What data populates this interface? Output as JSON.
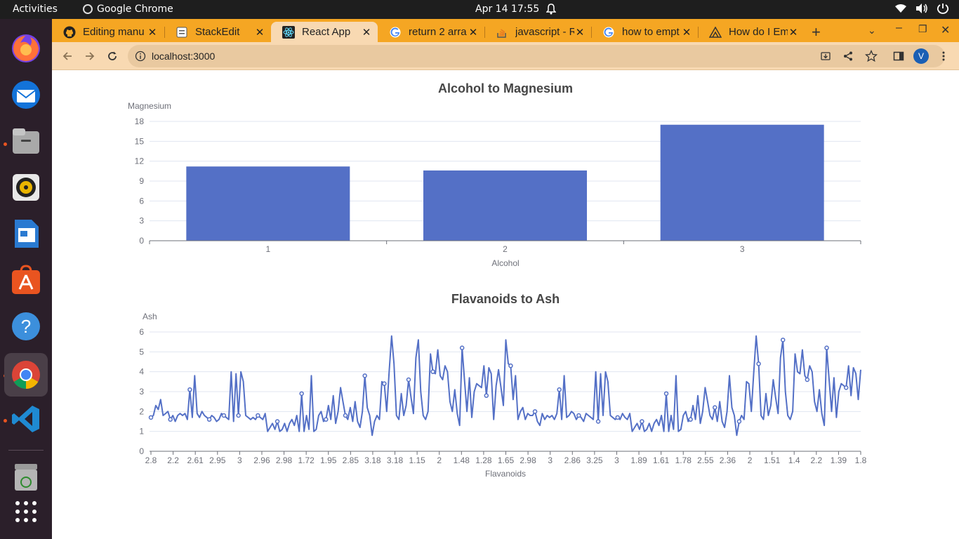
{
  "topbar": {
    "activities": "Activities",
    "app_name": "Google Chrome",
    "clock": "Apr 14  17:55"
  },
  "dock": {
    "items": [
      {
        "name": "firefox-icon",
        "color": "#e66000",
        "running": false
      },
      {
        "name": "thunderbird-icon",
        "color": "#2f6fca",
        "running": false
      },
      {
        "name": "files-icon",
        "color": "#8a8a8a",
        "running": true
      },
      {
        "name": "rhythmbox-icon",
        "color": "#e8b400",
        "running": false
      },
      {
        "name": "writer-icon",
        "color": "#2a7ad1",
        "running": false
      },
      {
        "name": "app-center-icon",
        "color": "#e95420",
        "running": false
      },
      {
        "name": "help-icon",
        "color": "#3c8fdc",
        "running": false
      },
      {
        "name": "chrome-icon",
        "color": "#4285f4",
        "running": true,
        "active": true
      },
      {
        "name": "vscode-icon",
        "color": "#1f8ad2",
        "running": true
      },
      {
        "name": "trash-icon",
        "color": "#8a8a8a",
        "running": false
      },
      {
        "name": "show-apps-icon",
        "color": "#ffffff",
        "running": false
      }
    ]
  },
  "browser": {
    "tabs": [
      {
        "label": "Editing manu",
        "icon": "github-icon",
        "active": false
      },
      {
        "label": "StackEdit",
        "icon": "stackedit-icon",
        "active": false
      },
      {
        "label": "React App",
        "icon": "react-icon",
        "active": true
      },
      {
        "label": "return 2 arra",
        "icon": "google-icon",
        "active": false
      },
      {
        "label": "javascript - R",
        "icon": "stackoverflow-icon",
        "active": false
      },
      {
        "label": "how to empt",
        "icon": "google-icon",
        "active": false
      },
      {
        "label": "How do I Em",
        "icon": "vercel-icon",
        "active": false
      }
    ],
    "url": "localhost:3000",
    "profile_initial": "V"
  },
  "chart_data": [
    {
      "type": "bar",
      "title": "Alcohol to Magnesium",
      "xlabel": "Alcohol",
      "ylabel": "Magnesium",
      "categories": [
        "1",
        "2",
        "3"
      ],
      "values": [
        11.2,
        10.6,
        17.5
      ],
      "ylim": [
        0,
        18
      ],
      "yticks": [
        0,
        3,
        6,
        9,
        12,
        15,
        18
      ],
      "grid": true,
      "color": "#5470c6"
    },
    {
      "type": "line",
      "title": "Flavanoids to Ash",
      "xlabel": "Flavanoids",
      "ylabel": "Ash",
      "ylim": [
        0,
        6
      ],
      "yticks": [
        0,
        1,
        2,
        3,
        4,
        5,
        6
      ],
      "grid": true,
      "color": "#5470c6",
      "xtick_labels": [
        "2.8",
        "2.2",
        "2.61",
        "2.95",
        "3",
        "2.96",
        "2.98",
        "1.72",
        "1.95",
        "2.85",
        "3.18",
        "3.18",
        "1.15",
        "2",
        "1.48",
        "1.28",
        "1.65",
        "2.98",
        "3",
        "2.86",
        "3.25",
        "3",
        "1.89",
        "1.61",
        "1.78",
        "2.55",
        "2.36",
        "2",
        "1.51",
        "1.4",
        "2.2",
        "1.39",
        "1.8"
      ],
      "values": [
        1.7,
        1.8,
        2.3,
        2.1,
        2.6,
        1.8,
        1.9,
        2.0,
        1.6,
        1.8,
        1.5,
        1.8,
        1.9,
        1.8,
        1.9,
        1.6,
        3.1,
        1.7,
        3.8,
        1.9,
        1.7,
        2.0,
        1.8,
        1.7,
        1.6,
        1.8,
        1.7,
        1.5,
        1.6,
        1.9,
        1.8,
        1.7,
        1.6,
        4.0,
        1.5,
        3.9,
        1.8,
        4.0,
        3.5,
        1.8,
        1.7,
        1.6,
        1.7,
        1.6,
        1.8,
        1.7,
        1.6,
        1.9,
        1.0,
        1.2,
        1.4,
        1.1,
        1.5,
        1.0,
        1.1,
        1.4,
        1.0,
        1.4,
        1.6,
        1.3,
        1.8,
        1.0,
        2.9,
        1.0,
        1.8,
        1.1,
        3.8,
        1.0,
        1.1,
        1.8,
        2.0,
        1.5,
        1.6,
        2.3,
        1.6,
        2.8,
        1.4,
        2.0,
        3.2,
        2.5,
        1.8,
        1.6,
        2.2,
        1.5,
        2.5,
        1.5,
        1.2,
        2.0,
        3.8,
        2.2,
        1.8,
        0.8,
        1.5,
        1.8,
        1.6,
        3.5,
        3.4,
        2.0,
        4.0,
        5.8,
        4.4,
        1.8,
        1.6,
        2.9,
        1.8,
        2.3,
        3.6,
        2.7,
        1.9,
        4.7,
        5.6,
        3.0,
        1.8,
        1.6,
        2.0,
        4.9,
        4.0,
        3.9,
        5.1,
        3.8,
        3.6,
        4.3,
        4.0,
        2.5,
        2.0,
        3.1,
        1.9,
        1.3,
        5.2,
        3.6,
        2.0,
        3.7,
        1.7,
        3.0,
        3.4,
        3.3,
        3.2,
        4.3,
        2.8,
        4.2,
        3.9,
        1.6,
        3.3,
        4.1,
        3.2,
        2.3,
        5.6,
        4.4,
        4.3,
        2.6,
        3.8,
        1.6,
        2.0,
        2.2,
        1.6,
        1.9,
        1.8,
        1.8,
        2.0,
        1.5,
        1.3,
        1.9,
        1.6,
        1.8,
        1.7,
        1.8,
        1.6,
        1.9,
        3.1,
        1.6,
        3.8,
        1.7,
        1.8,
        2.0,
        1.9,
        1.6,
        1.8,
        1.7,
        1.5,
        1.9,
        1.8,
        1.7,
        1.6,
        4.0,
        1.5,
        3.9,
        1.8,
        4.0,
        3.5,
        1.8,
        1.7,
        1.6,
        1.7,
        1.6,
        1.9,
        1.7,
        1.6,
        1.9,
        1.0,
        1.2,
        1.4,
        1.1,
        1.5,
        1.0,
        1.1,
        1.4,
        1.0,
        1.4,
        1.6,
        1.3,
        1.8,
        1.0,
        2.9,
        1.0,
        1.8,
        1.1,
        3.8,
        1.0,
        1.1,
        1.8,
        2.0,
        1.5,
        1.6,
        2.3,
        1.6,
        2.8,
        1.4,
        2.0,
        3.2,
        2.5,
        1.8,
        1.6,
        2.2,
        1.5,
        2.5,
        1.5,
        1.2,
        2.0,
        3.8,
        2.2,
        1.8,
        0.8,
        1.5,
        1.8,
        1.6,
        3.5,
        3.4,
        2.0,
        4.0,
        5.8,
        4.4,
        1.8,
        1.6,
        2.9,
        1.8,
        2.3,
        3.6,
        2.7,
        1.9,
        4.7,
        5.6,
        3.0,
        1.8,
        1.6,
        2.0,
        4.9,
        4.0,
        3.9,
        5.1,
        3.8,
        3.6,
        4.3,
        4.0,
        2.5,
        2.0,
        3.1,
        1.9,
        1.3,
        5.2,
        3.6,
        2.0,
        3.7,
        1.7,
        3.0,
        3.4,
        3.3,
        3.2,
        4.3,
        2.8,
        4.2,
        3.9,
        2.6,
        4.1
      ],
      "markers": [
        0,
        8,
        16,
        24,
        30,
        36,
        44,
        52,
        62,
        72,
        80,
        88,
        96,
        106,
        116,
        128,
        138,
        148,
        158,
        168,
        176,
        184,
        192,
        202,
        212,
        222,
        232,
        242,
        250,
        260,
        270,
        278,
        286
      ]
    }
  ]
}
